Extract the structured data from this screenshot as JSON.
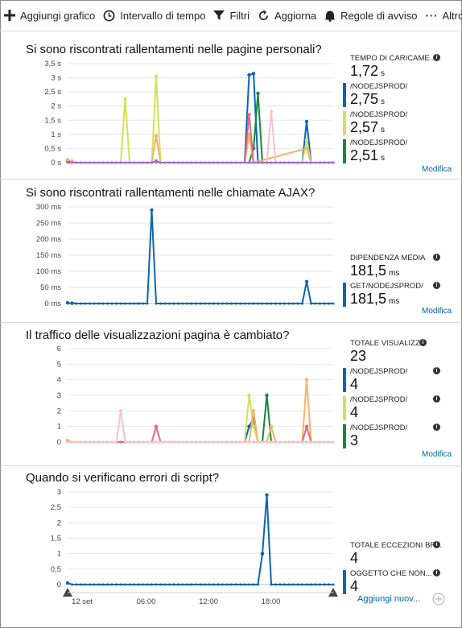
{
  "toolbar": {
    "add_chart": "Aggiungi grafico",
    "time_range": "Intervallo di tempo",
    "filters": "Filtri",
    "refresh": "Aggiorna",
    "alert_rules": "Regole di avviso",
    "more": "Altro"
  },
  "sections": [
    {
      "title": "Si sono riscontrati rallentamenti nelle pagine personali?",
      "legend": {
        "total_label": "TEMPO DI CARICAME...",
        "total_value": "1,72",
        "total_unit": "s",
        "items": [
          {
            "label": "/NODEJSPROD/",
            "value": "2,75",
            "unit": "s",
            "color": "#0a64b8"
          },
          {
            "label": "/NODEJSPROD/",
            "value": "2,57",
            "unit": "s",
            "color": "#d4e157"
          },
          {
            "label": "/NODEJSPROD/",
            "value": "2,51",
            "unit": "s",
            "color": "#10893e"
          }
        ],
        "link": "Modifica"
      }
    },
    {
      "title": "Si sono riscontrati rallentamenti nelle chiamate AJAX?",
      "legend": {
        "total_label": "DIPENDENZA MEDIA",
        "total_value": "181,5",
        "total_unit": "ms",
        "items": [
          {
            "label": "GET/NODEJSPROD/",
            "value": "181,5",
            "unit": "ms",
            "color": "#0a64b8"
          }
        ],
        "link": "Modifica"
      }
    },
    {
      "title": "Il traffico delle visualizzazioni pagina è cambiato?",
      "legend": {
        "total_label": "TOTALE VISUALIZZ...",
        "total_value": "23",
        "total_unit": "",
        "items": [
          {
            "label": "/NODEJSPROD/",
            "value": "4",
            "unit": "",
            "color": "#0a64b8"
          },
          {
            "label": "/NODEJSPROD/",
            "value": "4",
            "unit": "",
            "color": "#d4e157"
          },
          {
            "label": "/NODEJSPROD/",
            "value": "3",
            "unit": "",
            "color": "#10893e"
          }
        ],
        "link": "Modifica"
      }
    },
    {
      "title": "Quando si verificano errori di script?",
      "legend": {
        "total_label": "TOTALE ECCEZIONI BR...",
        "total_value": "4",
        "total_unit": "",
        "items": [
          {
            "label": "OGGETTO CHE NON...",
            "value": "4",
            "unit": "",
            "color": "#0a64b8"
          }
        ],
        "link": "Aggiungi nuov..."
      }
    }
  ],
  "chart_data": [
    {
      "type": "line",
      "ytick_labels": [
        "0 s",
        "0,5 s",
        "1 s",
        "1,5 s",
        "2 s",
        "2,5 s",
        "3 s",
        "3,5 s"
      ],
      "ylim": [
        0,
        3.5
      ],
      "xlim": [
        0,
        60
      ],
      "grid": true,
      "series": [
        {
          "color": "#0a64b8",
          "points": [
            [
              0,
              0.05
            ],
            [
              1,
              0
            ],
            [
              40,
              0
            ],
            [
              41,
              3.1
            ],
            [
              42,
              3.15
            ],
            [
              43,
              0
            ],
            [
              48,
              0
            ],
            [
              49,
              0
            ],
            [
              50,
              0
            ],
            [
              51,
              0
            ],
            [
              52,
              0
            ],
            [
              53,
              0
            ],
            [
              54,
              1.45
            ],
            [
              55,
              0
            ],
            [
              60,
              0
            ]
          ]
        },
        {
          "color": "#d4e157",
          "points": [
            [
              0,
              0
            ],
            [
              12,
              0
            ],
            [
              13,
              2.25
            ],
            [
              14,
              0
            ],
            [
              19,
              0
            ],
            [
              20,
              3.05
            ],
            [
              21,
              0
            ],
            [
              53,
              0
            ],
            [
              54,
              0.8
            ],
            [
              55,
              0
            ],
            [
              60,
              0
            ]
          ]
        },
        {
          "color": "#10893e",
          "points": [
            [
              0,
              0
            ],
            [
              41,
              0
            ],
            [
              42,
              0.5
            ],
            [
              43,
              2.45
            ],
            [
              44,
              0
            ],
            [
              60,
              0
            ]
          ]
        },
        {
          "color": "#f4b266",
          "points": [
            [
              0,
              0.1
            ],
            [
              1,
              0.05
            ],
            [
              2,
              0
            ],
            [
              19,
              0
            ],
            [
              20,
              0.95
            ],
            [
              21,
              0
            ],
            [
              40,
              0
            ],
            [
              41,
              1
            ],
            [
              42,
              0
            ],
            [
              54,
              0.5
            ],
            [
              55,
              0
            ],
            [
              60,
              0
            ]
          ]
        },
        {
          "color": "#e8677e",
          "points": [
            [
              0,
              0
            ],
            [
              40,
              0
            ],
            [
              41,
              1.7
            ],
            [
              42,
              0
            ],
            [
              60,
              0
            ]
          ]
        },
        {
          "color": "#f5c3c8",
          "points": [
            [
              0,
              0
            ],
            [
              45,
              0
            ],
            [
              46,
              1.8
            ],
            [
              47,
              0
            ],
            [
              60,
              0
            ]
          ]
        },
        {
          "color": "#9b6bd6",
          "points": [
            [
              0,
              0
            ],
            [
              19,
              0
            ],
            [
              20,
              0.05
            ],
            [
              21,
              0
            ],
            [
              60,
              0
            ]
          ]
        }
      ]
    },
    {
      "type": "line",
      "ytick_labels": [
        "0 ms",
        "50 ms",
        "100 ms",
        "150 ms",
        "200 ms",
        "250 ms",
        "300 ms"
      ],
      "ylim": [
        0,
        300
      ],
      "xlim": [
        0,
        60
      ],
      "grid": true,
      "series": [
        {
          "color": "#0a64b8",
          "points": [
            [
              0,
              2
            ],
            [
              1,
              1
            ],
            [
              2,
              0
            ],
            [
              18,
              0
            ],
            [
              19,
              290
            ],
            [
              20,
              0
            ],
            [
              53,
              0
            ],
            [
              54,
              68
            ],
            [
              55,
              0
            ],
            [
              60,
              0
            ]
          ]
        }
      ]
    },
    {
      "type": "line",
      "ytick_labels": [
        "0",
        "1",
        "2",
        "3",
        "4",
        "5",
        "6"
      ],
      "ylim": [
        0,
        6
      ],
      "xlim": [
        0,
        60
      ],
      "grid": true,
      "series": [
        {
          "color": "#0a64b8",
          "points": [
            [
              0,
              0
            ],
            [
              40,
              0
            ],
            [
              41,
              1
            ],
            [
              42,
              1.5
            ],
            [
              43,
              0
            ],
            [
              60,
              0
            ]
          ]
        },
        {
          "color": "#d4e157",
          "points": [
            [
              0,
              0
            ],
            [
              40,
              0
            ],
            [
              41,
              3
            ],
            [
              42,
              1
            ],
            [
              43,
              0
            ],
            [
              60,
              0
            ]
          ]
        },
        {
          "color": "#10893e",
          "points": [
            [
              0,
              0
            ],
            [
              44,
              0
            ],
            [
              45,
              3
            ],
            [
              46,
              0
            ],
            [
              60,
              0
            ]
          ]
        },
        {
          "color": "#f4b266",
          "points": [
            [
              0,
              0.1
            ],
            [
              1,
              0
            ],
            [
              41,
              0
            ],
            [
              42,
              2
            ],
            [
              43,
              0
            ],
            [
              45,
              0
            ],
            [
              46,
              1
            ],
            [
              47,
              0
            ],
            [
              53,
              0
            ],
            [
              54,
              4
            ],
            [
              55,
              0
            ],
            [
              60,
              0
            ]
          ]
        },
        {
          "color": "#e8677e",
          "points": [
            [
              0,
              0
            ],
            [
              19,
              0
            ],
            [
              20,
              1
            ],
            [
              21,
              0
            ],
            [
              53,
              0
            ],
            [
              54,
              1
            ],
            [
              55,
              0
            ],
            [
              60,
              0
            ]
          ]
        },
        {
          "color": "#f5c3c8",
          "points": [
            [
              0,
              0
            ],
            [
              11,
              0
            ],
            [
              12,
              2
            ],
            [
              13,
              0
            ],
            [
              60,
              0
            ]
          ]
        }
      ]
    },
    {
      "type": "line",
      "ytick_labels": [
        "0",
        "0,5",
        "1",
        "1,5",
        "2",
        "2,5",
        "3"
      ],
      "ylim": [
        0,
        3
      ],
      "xlim": [
        0,
        60
      ],
      "grid": true,
      "xtick_labels": [
        "12 set",
        "06:00",
        "12:00",
        "18:00"
      ],
      "series": [
        {
          "color": "#0a64b8",
          "points": [
            [
              0,
              0.05
            ],
            [
              1,
              0
            ],
            [
              43,
              0
            ],
            [
              44,
              1
            ],
            [
              45,
              2.9
            ],
            [
              46,
              0
            ],
            [
              60,
              0
            ]
          ]
        }
      ]
    }
  ],
  "icons": {
    "add": "plus-icon",
    "time": "clock-icon",
    "filter": "funnel-icon",
    "refresh": "refresh-icon",
    "alert": "bell-icon",
    "more": "ellipsis-icon",
    "info": "info-icon"
  }
}
